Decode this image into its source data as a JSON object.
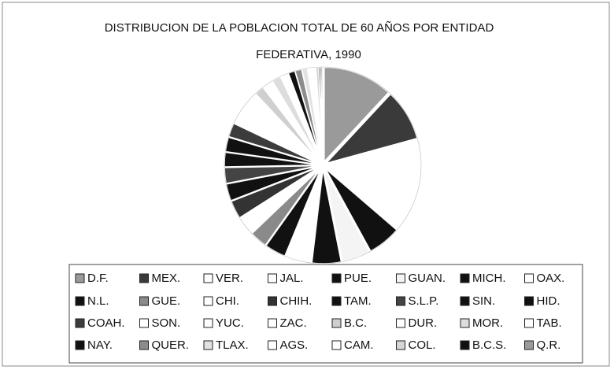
{
  "chart_data": {
    "type": "pie",
    "title": [
      "DISTRIBUCION DE LA POBLACION TOTAL DE 60 AÑOS POR ENTIDAD",
      "FEDERATIVA, 1990"
    ],
    "categories": [
      "D.F.",
      "MEX.",
      "VER.",
      "JAL.",
      "PUE.",
      "GUAN.",
      "MICH.",
      "OAX.",
      "N.L.",
      "GUE.",
      "CHI.",
      "CHIH.",
      "TAM.",
      "S.L.P.",
      "SIN.",
      "HID.",
      "COAH.",
      "SON.",
      "YUC.",
      "ZAC.",
      "B.C.",
      "DUR.",
      "MOR.",
      "TAB.",
      "NAY.",
      "QUER.",
      "TLAX.",
      "AGS.",
      "CAM.",
      "COL.",
      "B.C.S.",
      "Q.R."
    ],
    "values": [
      11.5,
      8.5,
      8,
      7,
      5.5,
      4.7,
      4.8,
      4.2,
      3.5,
      2.9,
      3,
      3,
      2.8,
      2.6,
      2.4,
      2.4,
      2.3,
      2.1,
      1.9,
      1.7,
      1.6,
      1.7,
      1.5,
      1.3,
      1.1,
      1.1,
      0.9,
      0.8,
      0.5,
      0.5,
      0.3,
      0.3
    ],
    "colors": [
      "#9a9a9a",
      "#3a3a3a",
      "#ffffff",
      "#ffffff",
      "#111111",
      "#f4f4f4",
      "#111111",
      "#ffffff",
      "#111111",
      "#8a8a8a",
      "#ffffff",
      "#333333",
      "#111111",
      "#444444",
      "#111111",
      "#111111",
      "#3c3c3c",
      "#ffffff",
      "#ffffff",
      "#ffffff",
      "#cfcfcf",
      "#ffffff",
      "#dddddd",
      "#ffffff",
      "#111111",
      "#8c8c8c",
      "#e2e2e2",
      "#ffffff",
      "#ffffff",
      "#d6d6d6",
      "#111111",
      "#9a9a9a"
    ],
    "legend": "bottom"
  }
}
